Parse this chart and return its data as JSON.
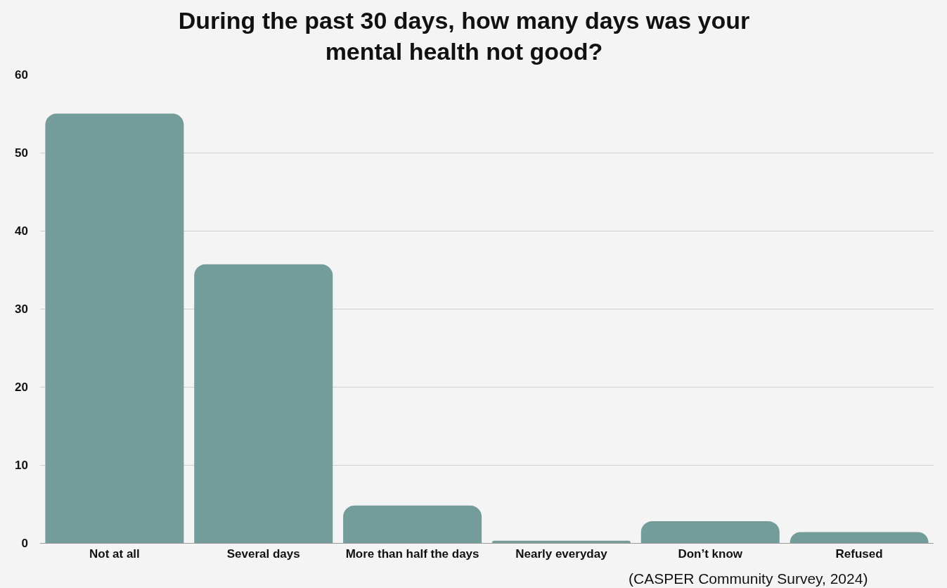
{
  "chart_data": {
    "type": "bar",
    "title": "During the past 30 days, how many days was your\nmental health not good?",
    "categories": [
      "Not at all",
      "Several days",
      "More than half the days",
      "Nearly everyday",
      "Don’t know",
      "Refused"
    ],
    "values": [
      55,
      35.7,
      4.8,
      0.3,
      2.8,
      1.4
    ],
    "color": "#749c9b",
    "ylim": [
      0,
      60
    ],
    "yticks": [
      0,
      10,
      20,
      30,
      40,
      50,
      60
    ],
    "grid": "y",
    "annotations": [
      "(CASPER Community Survey, 2024)"
    ]
  }
}
